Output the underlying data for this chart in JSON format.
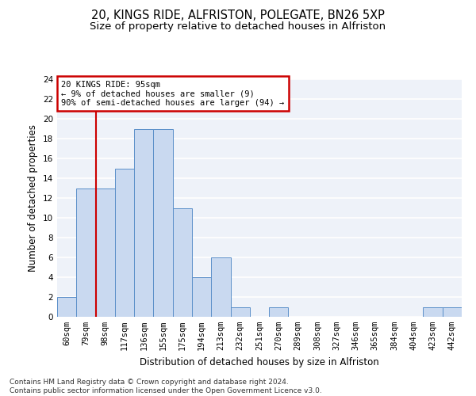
{
  "title_line1": "20, KINGS RIDE, ALFRISTON, POLEGATE, BN26 5XP",
  "title_line2": "Size of property relative to detached houses in Alfriston",
  "xlabel": "Distribution of detached houses by size in Alfriston",
  "ylabel": "Number of detached properties",
  "categories": [
    "60sqm",
    "79sqm",
    "98sqm",
    "117sqm",
    "136sqm",
    "155sqm",
    "175sqm",
    "194sqm",
    "213sqm",
    "232sqm",
    "251sqm",
    "270sqm",
    "289sqm",
    "308sqm",
    "327sqm",
    "346sqm",
    "365sqm",
    "384sqm",
    "404sqm",
    "423sqm",
    "442sqm"
  ],
  "values": [
    2,
    13,
    13,
    15,
    19,
    19,
    11,
    4,
    6,
    1,
    0,
    1,
    0,
    0,
    0,
    0,
    0,
    0,
    0,
    1,
    1
  ],
  "bar_color": "#c9d9f0",
  "bar_edge_color": "#5b8fc9",
  "vline_x": 1.5,
  "vline_color": "#cc0000",
  "annotation_text": "20 KINGS RIDE: 95sqm\n← 9% of detached houses are smaller (9)\n90% of semi-detached houses are larger (94) →",
  "annotation_box_color": "#cc0000",
  "ylim": [
    0,
    24
  ],
  "yticks": [
    0,
    2,
    4,
    6,
    8,
    10,
    12,
    14,
    16,
    18,
    20,
    22,
    24
  ],
  "footnote": "Contains HM Land Registry data © Crown copyright and database right 2024.\nContains public sector information licensed under the Open Government Licence v3.0.",
  "bg_color": "#eef2f9",
  "grid_color": "#ffffff",
  "title_fontsize": 10.5,
  "subtitle_fontsize": 9.5,
  "tick_fontsize": 7.5,
  "ylabel_fontsize": 8.5,
  "xlabel_fontsize": 8.5,
  "footnote_fontsize": 6.5
}
